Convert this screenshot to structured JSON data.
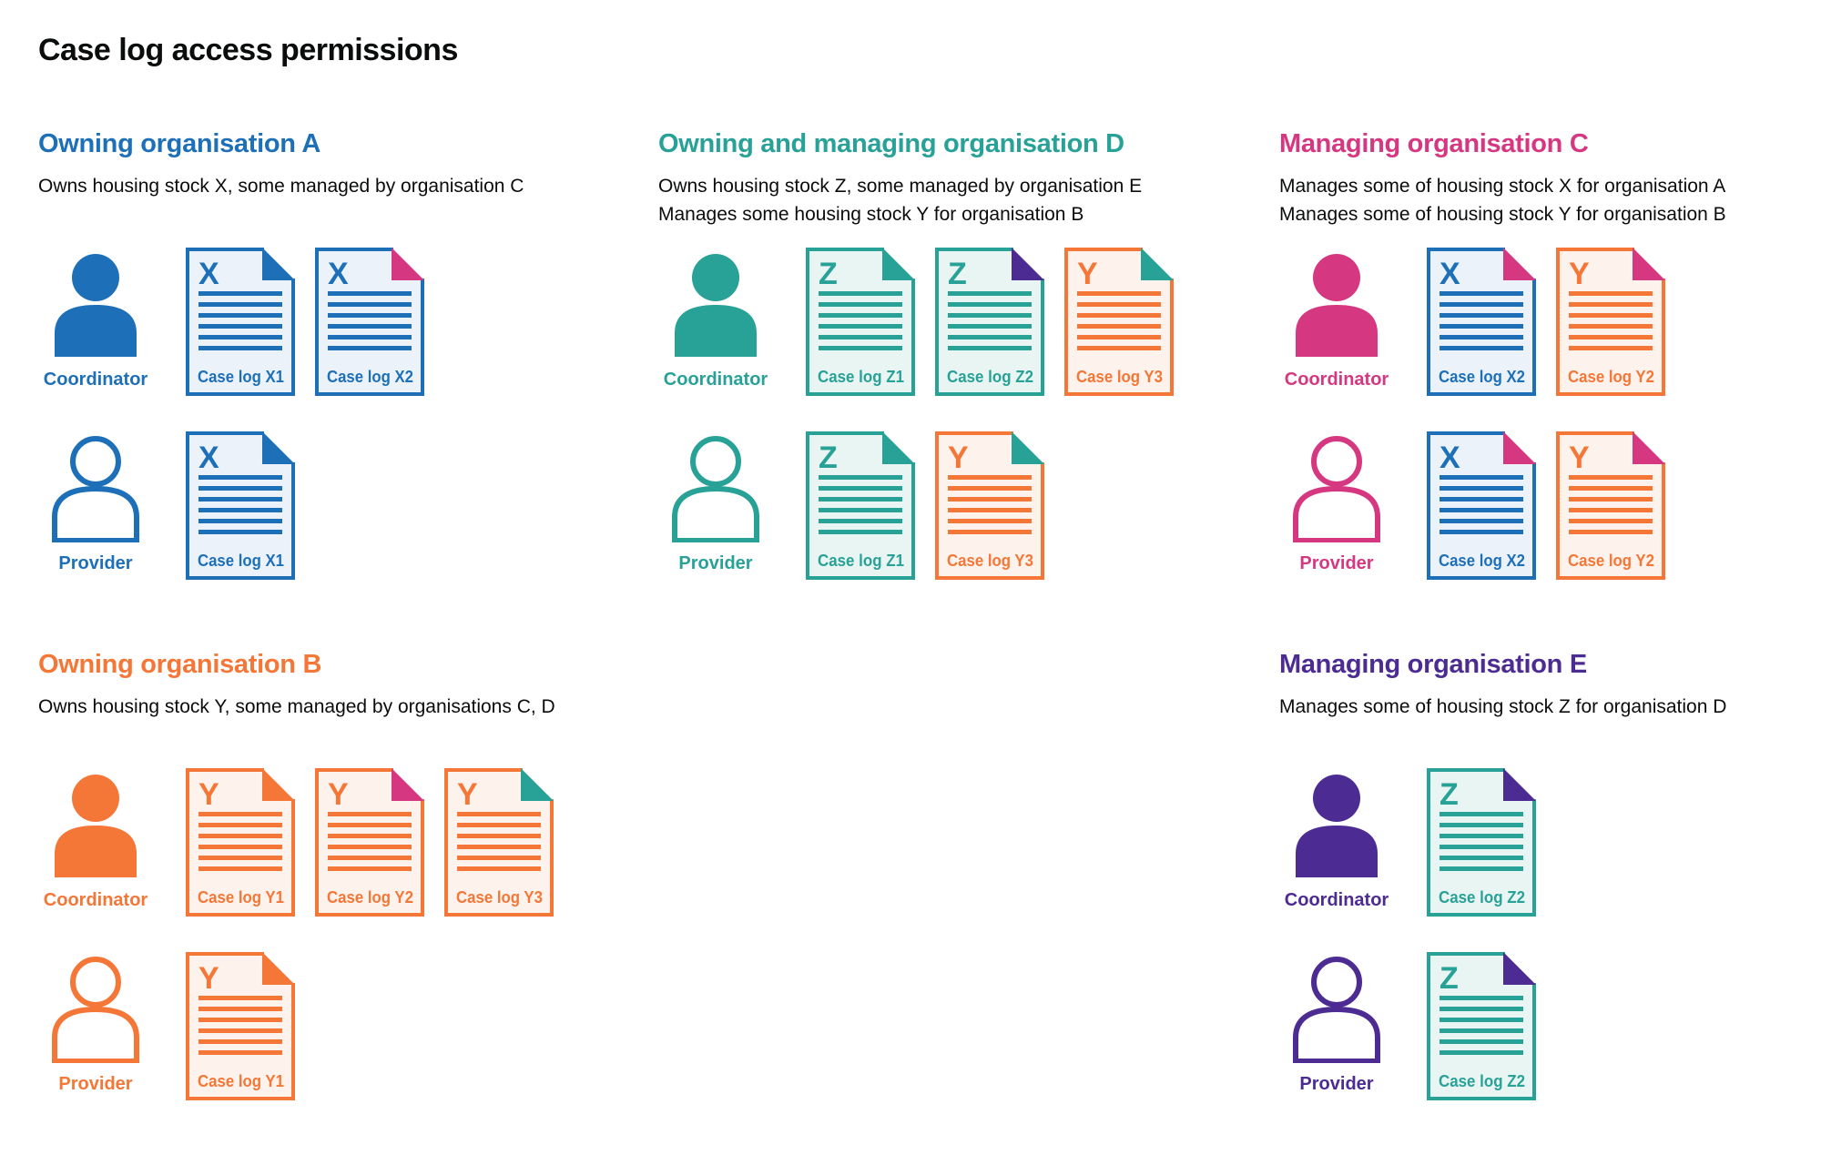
{
  "title": "Case log access permissions",
  "colors": {
    "blue": "#1d70b8",
    "teal": "#28a197",
    "orange": "#f47738",
    "pink": "#d53880",
    "purple": "#4c2c92",
    "text": "#0b0c0c",
    "blue_light": "#ecf2f9",
    "teal_light": "#e9f5f3",
    "orange_light": "#fdf3ec"
  },
  "roles": {
    "coordinator": "Coordinator",
    "provider": "Provider"
  },
  "sections": [
    {
      "id": "a",
      "heading": "Owning organisation A",
      "color": "blue",
      "description": [
        "Owns housing stock X, some managed by organisation C"
      ],
      "rows": [
        {
          "role": "coordinator",
          "color": "blue",
          "docs": [
            {
              "letter": "X",
              "body": "blue",
              "fold": "blue",
              "label": "Case log X1"
            },
            {
              "letter": "X",
              "body": "blue",
              "fold": "pink",
              "label": "Case log X2"
            }
          ]
        },
        {
          "role": "provider",
          "color": "blue",
          "docs": [
            {
              "letter": "X",
              "body": "blue",
              "fold": "blue",
              "label": "Case log X1"
            }
          ]
        }
      ]
    },
    {
      "id": "d",
      "heading": "Owning and managing organisation D",
      "color": "teal",
      "description": [
        "Owns housing stock Z, some managed by organisation E",
        "Manages some housing stock Y for organisation B"
      ],
      "rows": [
        {
          "role": "coordinator",
          "color": "teal",
          "docs": [
            {
              "letter": "Z",
              "body": "teal",
              "fold": "teal",
              "label": "Case log Z1"
            },
            {
              "letter": "Z",
              "body": "teal",
              "fold": "purple",
              "label": "Case log Z2"
            },
            {
              "letter": "Y",
              "body": "orange",
              "fold": "teal",
              "label": "Case log Y3"
            }
          ]
        },
        {
          "role": "provider",
          "color": "teal",
          "docs": [
            {
              "letter": "Z",
              "body": "teal",
              "fold": "teal",
              "label": "Case log Z1"
            },
            {
              "letter": "Y",
              "body": "orange",
              "fold": "teal",
              "label": "Case log Y3"
            }
          ]
        }
      ]
    },
    {
      "id": "c",
      "heading": "Managing organisation C",
      "color": "pink",
      "description": [
        "Manages some of housing stock X for organisation A",
        "Manages some of housing stock Y for organisation B"
      ],
      "rows": [
        {
          "role": "coordinator",
          "color": "pink",
          "docs": [
            {
              "letter": "X",
              "body": "blue",
              "fold": "pink",
              "label": "Case log X2"
            },
            {
              "letter": "Y",
              "body": "orange",
              "fold": "pink",
              "label": "Case log Y2"
            }
          ]
        },
        {
          "role": "provider",
          "color": "pink",
          "docs": [
            {
              "letter": "X",
              "body": "blue",
              "fold": "pink",
              "label": "Case log X2"
            },
            {
              "letter": "Y",
              "body": "orange",
              "fold": "pink",
              "label": "Case log Y2"
            }
          ]
        }
      ]
    },
    {
      "id": "b",
      "heading": "Owning organisation B",
      "color": "orange",
      "description": [
        "Owns housing stock Y, some managed by organisations C, D"
      ],
      "rows": [
        {
          "role": "coordinator",
          "color": "orange",
          "docs": [
            {
              "letter": "Y",
              "body": "orange",
              "fold": "orange",
              "label": "Case log Y1"
            },
            {
              "letter": "Y",
              "body": "orange",
              "fold": "pink",
              "label": "Case log Y2"
            },
            {
              "letter": "Y",
              "body": "orange",
              "fold": "teal",
              "label": "Case log Y3"
            }
          ]
        },
        {
          "role": "provider",
          "color": "orange",
          "docs": [
            {
              "letter": "Y",
              "body": "orange",
              "fold": "orange",
              "label": "Case log Y1"
            }
          ]
        }
      ]
    },
    {
      "id": "e",
      "heading": "Managing organisation E",
      "color": "purple",
      "description": [
        "Manages some of housing stock Z for organisation D"
      ],
      "rows": [
        {
          "role": "coordinator",
          "color": "purple",
          "docs": [
            {
              "letter": "Z",
              "body": "teal",
              "fold": "purple",
              "label": "Case log Z2"
            }
          ]
        },
        {
          "role": "provider",
          "color": "purple",
          "docs": [
            {
              "letter": "Z",
              "body": "teal",
              "fold": "purple",
              "label": "Case log Z2"
            }
          ]
        }
      ]
    }
  ]
}
